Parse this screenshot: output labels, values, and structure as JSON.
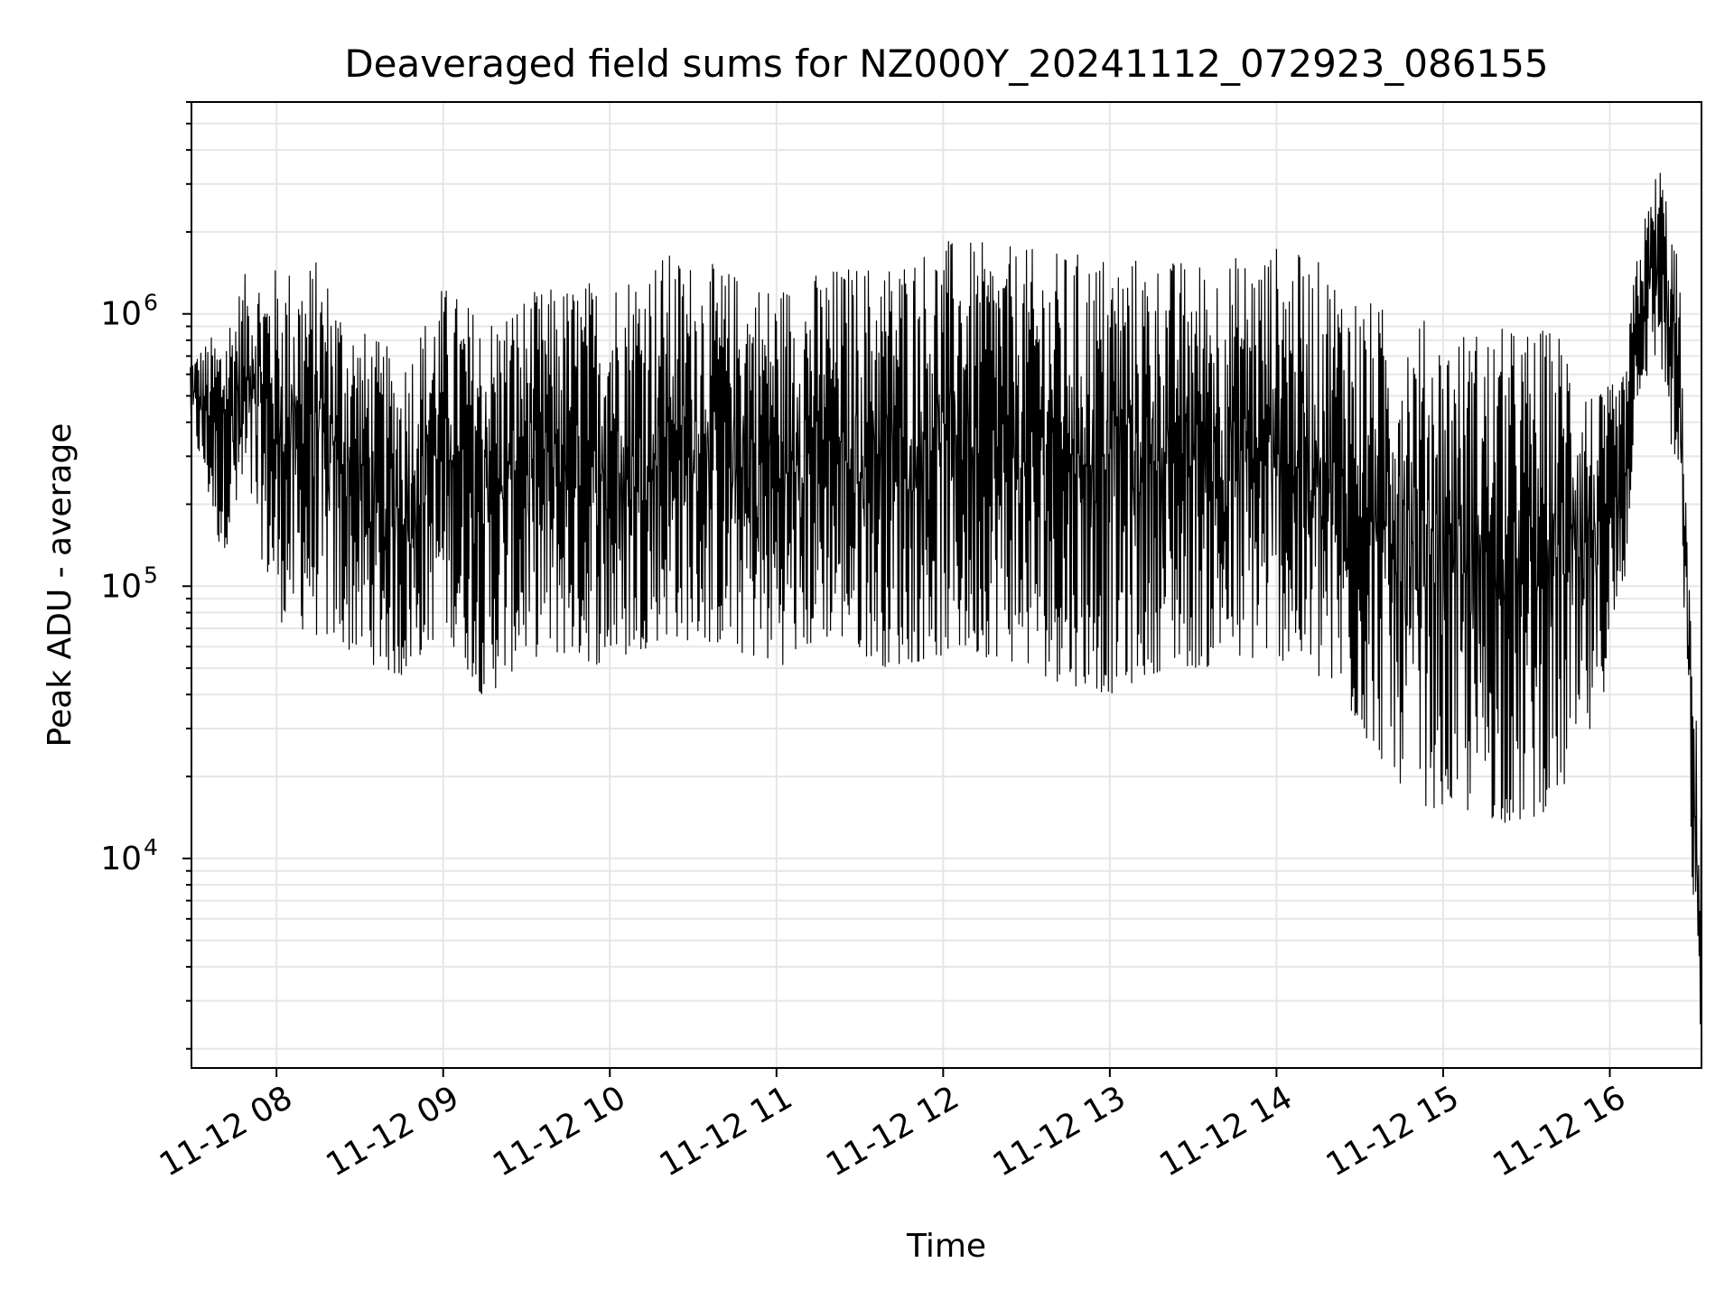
{
  "chart_data": {
    "type": "line",
    "title": "Deaveraged field sums for NZ000Y_20241112_072923_086155",
    "xlabel": "Time",
    "ylabel": "Peak ADU - average",
    "yscale": "log",
    "grid": true,
    "xlim": [
      "2024-11-12 07:29:23",
      "2024-11-12 16:33:00"
    ],
    "ylim": [
      1700,
      6000000
    ],
    "x_ticks": [
      {
        "value": "2024-11-12 08:00",
        "label": "11-12 08"
      },
      {
        "value": "2024-11-12 09:00",
        "label": "11-12 09"
      },
      {
        "value": "2024-11-12 10:00",
        "label": "11-12 10"
      },
      {
        "value": "2024-11-12 11:00",
        "label": "11-12 11"
      },
      {
        "value": "2024-11-12 12:00",
        "label": "11-12 12"
      },
      {
        "value": "2024-11-12 13:00",
        "label": "11-12 13"
      },
      {
        "value": "2024-11-12 14:00",
        "label": "11-12 14"
      },
      {
        "value": "2024-11-12 15:00",
        "label": "11-12 15"
      },
      {
        "value": "2024-11-12 16:00",
        "label": "11-12 16"
      }
    ],
    "y_ticks": [
      {
        "value": 10000,
        "base": "10",
        "exp": "4"
      },
      {
        "value": 100000,
        "base": "10",
        "exp": "5"
      },
      {
        "value": 1000000,
        "base": "10",
        "exp": "6"
      }
    ],
    "series": [
      {
        "color": "#000000",
        "envelope": [
          {
            "x": "2024-11-12 07:29",
            "high": 700000,
            "low": 400000
          },
          {
            "x": "2024-11-12 07:40",
            "high": 900000,
            "low": 130000
          },
          {
            "x": "2024-11-12 07:50",
            "high": 1500000,
            "low": 200000
          },
          {
            "x": "2024-11-12 08:00",
            "high": 1500000,
            "low": 75000
          },
          {
            "x": "2024-11-12 08:15",
            "high": 1600000,
            "low": 65000
          },
          {
            "x": "2024-11-12 08:30",
            "high": 900000,
            "low": 55000
          },
          {
            "x": "2024-11-12 08:45",
            "high": 700000,
            "low": 45000
          },
          {
            "x": "2024-11-12 09:00",
            "high": 1300000,
            "low": 70000
          },
          {
            "x": "2024-11-12 09:15",
            "high": 1000000,
            "low": 38000
          },
          {
            "x": "2024-11-12 09:30",
            "high": 1200000,
            "low": 55000
          },
          {
            "x": "2024-11-12 09:45",
            "high": 1300000,
            "low": 55000
          },
          {
            "x": "2024-11-12 10:00",
            "high": 1400000,
            "low": 50000
          },
          {
            "x": "2024-11-12 10:20",
            "high": 1700000,
            "low": 65000
          },
          {
            "x": "2024-11-12 10:40",
            "high": 1500000,
            "low": 60000
          },
          {
            "x": "2024-11-12 11:00",
            "high": 1300000,
            "low": 50000
          },
          {
            "x": "2024-11-12 11:20",
            "high": 1500000,
            "low": 65000
          },
          {
            "x": "2024-11-12 11:40",
            "high": 1600000,
            "low": 50000
          },
          {
            "x": "2024-11-12 12:00",
            "high": 1900000,
            "low": 55000
          },
          {
            "x": "2024-11-12 12:20",
            "high": 1800000,
            "low": 55000
          },
          {
            "x": "2024-11-12 12:40",
            "high": 1700000,
            "low": 45000
          },
          {
            "x": "2024-11-12 13:00",
            "high": 1700000,
            "low": 40000
          },
          {
            "x": "2024-11-12 13:20",
            "high": 1600000,
            "low": 50000
          },
          {
            "x": "2024-11-12 13:40",
            "high": 1600000,
            "low": 50000
          },
          {
            "x": "2024-11-12 14:00",
            "high": 1800000,
            "low": 55000
          },
          {
            "x": "2024-11-12 14:20",
            "high": 1500000,
            "low": 40000
          },
          {
            "x": "2024-11-12 14:35",
            "high": 1100000,
            "low": 25000
          },
          {
            "x": "2024-11-12 14:50",
            "high": 1000000,
            "low": 16000
          },
          {
            "x": "2024-11-12 15:00",
            "high": 900000,
            "low": 15000
          },
          {
            "x": "2024-11-12 15:15",
            "high": 900000,
            "low": 14000
          },
          {
            "x": "2024-11-12 15:30",
            "high": 900000,
            "low": 13000
          },
          {
            "x": "2024-11-12 15:45",
            "high": 900000,
            "low": 18000
          },
          {
            "x": "2024-11-12 15:55",
            "high": 500000,
            "low": 30000
          },
          {
            "x": "2024-11-12 16:05",
            "high": 600000,
            "low": 90000
          },
          {
            "x": "2024-11-12 16:10",
            "high": 1800000,
            "low": 500000
          },
          {
            "x": "2024-11-12 16:18",
            "high": 3800000,
            "low": 700000
          },
          {
            "x": "2024-11-12 16:25",
            "high": 1500000,
            "low": 180000
          },
          {
            "x": "2024-11-12 16:28",
            "high": 130000,
            "low": 40000
          },
          {
            "x": "2024-11-12 16:31",
            "high": 35000,
            "low": 2200
          },
          {
            "x": "2024-11-12 16:33",
            "high": 18000,
            "low": 2300
          }
        ]
      }
    ]
  }
}
